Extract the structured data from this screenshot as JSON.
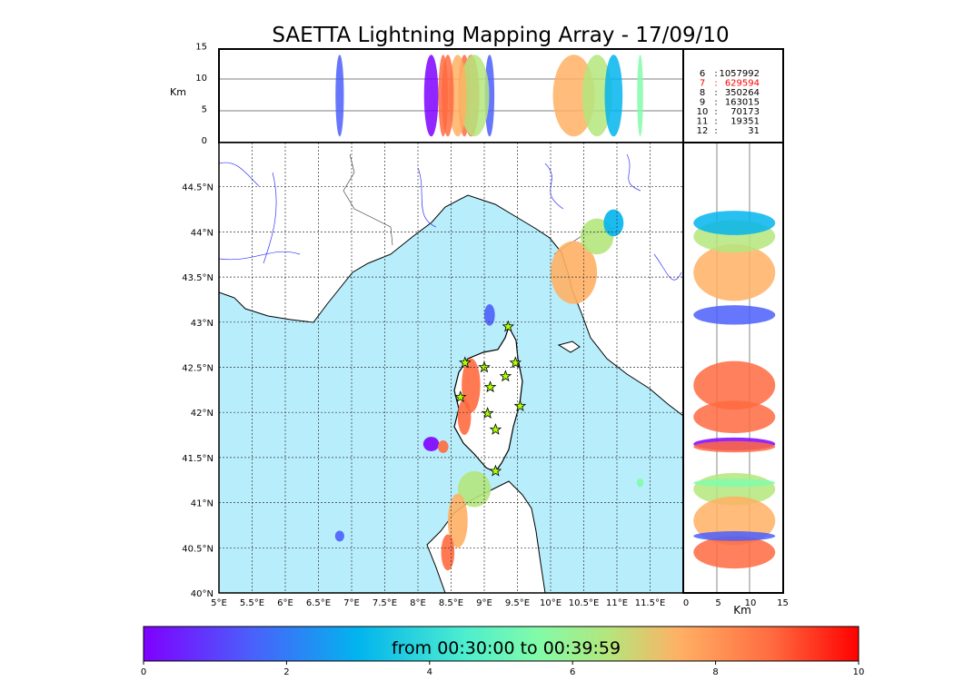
{
  "title": "SAETTA Lightning Mapping Array - 17/09/10",
  "top_panel": {
    "ylabel": "Km",
    "yticks": [
      "0",
      "5",
      "10",
      "15"
    ],
    "ylim": [
      0,
      15
    ]
  },
  "side_panel": {
    "xlabel": "Km",
    "xticks": [
      "0",
      "5",
      "10",
      "15"
    ],
    "xlim": [
      0,
      15
    ]
  },
  "map": {
    "lon_ticks": [
      "5°E",
      "5.5°E",
      "6°E",
      "6.5°E",
      "7°E",
      "7.5°E",
      "8°E",
      "8.5°E",
      "9°E",
      "9.5°E",
      "10°E",
      "10.5°E",
      "11°E",
      "11.5°E"
    ],
    "lat_ticks": [
      "40°N",
      "40.5°N",
      "41°N",
      "41.5°N",
      "42°N",
      "42.5°N",
      "43°N",
      "43.5°N",
      "44°N",
      "44.5°N"
    ],
    "lon_range": [
      5,
      12
    ],
    "lat_range": [
      40,
      44.9
    ],
    "sea_color": "#b8eefc"
  },
  "counts": [
    {
      "label": "6",
      "value": "1057992",
      "highlight": false
    },
    {
      "label": "7",
      "value": "629594",
      "highlight": true
    },
    {
      "label": "8",
      "value": "350264",
      "highlight": false
    },
    {
      "label": "9",
      "value": "163015",
      "highlight": false
    },
    {
      "label": "10",
      "value": "70173",
      "highlight": false
    },
    {
      "label": "11",
      "value": "19351",
      "highlight": false
    },
    {
      "label": "12",
      "value": "31",
      "highlight": false
    }
  ],
  "colorbar": {
    "label": "from 00:30:00 to 00:39:59",
    "ticks": [
      "0",
      "2",
      "4",
      "6",
      "8",
      "10"
    ],
    "range": [
      0,
      10
    ]
  },
  "chart_data": {
    "type": "scatter",
    "title": "SAETTA Lightning Mapping Array - 17/09/10",
    "clusters": [
      {
        "lon": 10.35,
        "lat": 43.55,
        "rlon": 0.35,
        "rlat": 0.35,
        "t": 8.5
      },
      {
        "lon": 10.7,
        "lat": 43.95,
        "rlon": 0.25,
        "rlat": 0.2,
        "t": 6.8
      },
      {
        "lon": 10.95,
        "lat": 44.1,
        "rlon": 0.15,
        "rlat": 0.15,
        "t": 3.5
      },
      {
        "lon": 9.08,
        "lat": 43.08,
        "rlon": 0.08,
        "rlat": 0.12,
        "t": 2.0
      },
      {
        "lon": 8.8,
        "lat": 42.3,
        "rlon": 0.14,
        "rlat": 0.3,
        "t": 9.0
      },
      {
        "lon": 8.7,
        "lat": 41.95,
        "rlon": 0.1,
        "rlat": 0.2,
        "t": 9.2
      },
      {
        "lon": 8.2,
        "lat": 41.65,
        "rlon": 0.12,
        "rlat": 0.08,
        "t": 0.8
      },
      {
        "lon": 8.38,
        "lat": 41.62,
        "rlon": 0.08,
        "rlat": 0.07,
        "t": 9.0
      },
      {
        "lon": 8.85,
        "lat": 41.15,
        "rlon": 0.25,
        "rlat": 0.2,
        "t": 6.5
      },
      {
        "lon": 8.6,
        "lat": 40.8,
        "rlon": 0.15,
        "rlat": 0.3,
        "t": 8.6
      },
      {
        "lon": 8.45,
        "lat": 40.45,
        "rlon": 0.1,
        "rlat": 0.2,
        "t": 9.3
      },
      {
        "lon": 6.82,
        "lat": 40.63,
        "rlon": 0.07,
        "rlat": 0.06,
        "t": 1.8
      },
      {
        "lon": 11.35,
        "lat": 41.22,
        "rlon": 0.05,
        "rlat": 0.05,
        "t": 5.5
      }
    ],
    "stars": [
      [
        8.71,
        42.55
      ],
      [
        9.0,
        42.5
      ],
      [
        9.36,
        42.95
      ],
      [
        9.47,
        42.55
      ],
      [
        9.32,
        42.4
      ],
      [
        9.09,
        42.28
      ],
      [
        8.64,
        42.17
      ],
      [
        9.54,
        42.07
      ],
      [
        9.05,
        41.99
      ],
      [
        9.17,
        41.81
      ],
      [
        9.17,
        41.35
      ]
    ]
  }
}
